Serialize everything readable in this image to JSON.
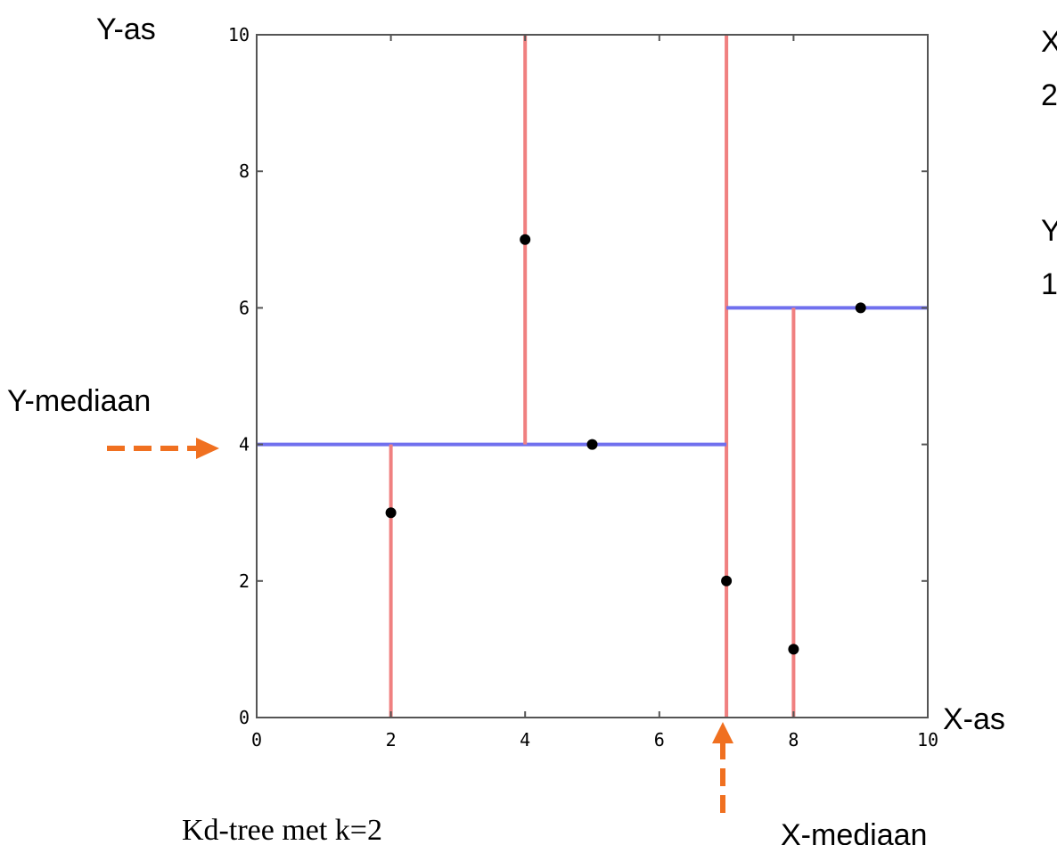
{
  "chart_data": {
    "type": "scatter",
    "title": "",
    "xlabel": "X-as",
    "ylabel": "Y-as",
    "xlim": [
      0,
      10
    ],
    "ylim": [
      0,
      10
    ],
    "x_ticks": [
      "0",
      "2",
      "4",
      "6",
      "8",
      "10"
    ],
    "y_ticks": [
      "0",
      "2",
      "4",
      "6",
      "8",
      "10"
    ],
    "grid": false,
    "points": [
      {
        "x": 2,
        "y": 3
      },
      {
        "x": 4,
        "y": 7
      },
      {
        "x": 5,
        "y": 4
      },
      {
        "x": 7,
        "y": 2
      },
      {
        "x": 8,
        "y": 1
      },
      {
        "x": 9,
        "y": 6
      }
    ],
    "splits": [
      {
        "axis": "x",
        "value": 7,
        "from": 0,
        "to": 10
      },
      {
        "axis": "y",
        "value": 4,
        "from": 0,
        "to": 7
      },
      {
        "axis": "y",
        "value": 6,
        "from": 7,
        "to": 10
      },
      {
        "axis": "x",
        "value": 2,
        "from": 0,
        "to": 4
      },
      {
        "axis": "x",
        "value": 4,
        "from": 4,
        "to": 10
      },
      {
        "axis": "x",
        "value": 8,
        "from": 0,
        "to": 6
      }
    ],
    "annotations": {
      "y_median_label": "Y-mediaan",
      "x_median_label": "X-mediaan",
      "caption": "Kd-tree met k=2",
      "side_text": [
        "X",
        "2",
        "Y",
        "1"
      ]
    },
    "colors": {
      "x_split": "#f08080",
      "y_split": "#7070ee",
      "point": "#000000",
      "arrow": "#f07020",
      "frame": "#555555"
    }
  }
}
